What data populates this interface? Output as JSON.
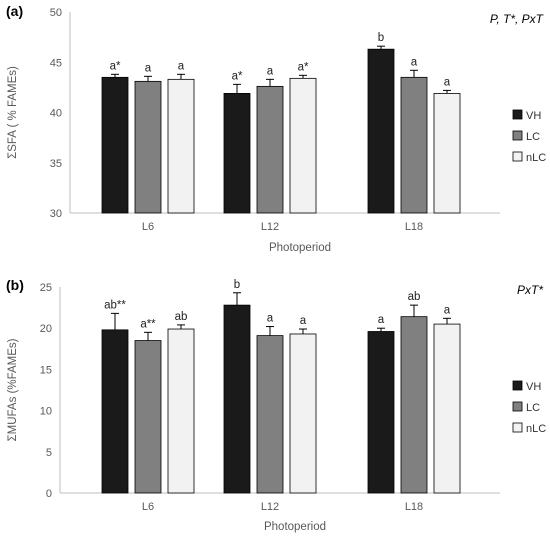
{
  "chart_data": [
    {
      "type": "bar",
      "panel_label": "(a)",
      "effects": "P, T*, PxT",
      "categories": [
        "L6",
        "L12",
        "L18"
      ],
      "xlabel": "Photoperiod",
      "ylabel": "ΣSFA ( % FAMEs)",
      "ylim": [
        30,
        50
      ],
      "yticks": [
        30,
        35,
        40,
        45,
        50
      ],
      "series": [
        {
          "name": "VH",
          "color": "#1a1a1a",
          "values": [
            43.5,
            41.9,
            46.3
          ],
          "errors": [
            0.3,
            0.9,
            0.3
          ],
          "labels": [
            "a*",
            "a*",
            "b"
          ]
        },
        {
          "name": "LC",
          "color": "#808080",
          "values": [
            43.1,
            42.6,
            43.5
          ],
          "errors": [
            0.5,
            0.7,
            0.7
          ],
          "labels": [
            "a",
            "a",
            "a"
          ]
        },
        {
          "name": "nLC",
          "color": "#f2f2f2",
          "values": [
            43.3,
            43.4,
            41.9
          ],
          "errors": [
            0.5,
            0.3,
            0.3
          ],
          "labels": [
            "a",
            "a*",
            "a"
          ]
        }
      ],
      "legend_position": "right"
    },
    {
      "type": "bar",
      "panel_label": "(b)",
      "effects": "PxT*",
      "categories": [
        "L6",
        "L12",
        "L18"
      ],
      "xlabel": "Photoperiod",
      "ylabel": "ΣMUFAs (%FAMEs)",
      "ylim": [
        0,
        25
      ],
      "yticks": [
        0,
        5,
        10,
        15,
        20,
        25
      ],
      "series": [
        {
          "name": "VH",
          "color": "#1a1a1a",
          "values": [
            19.8,
            22.8,
            19.6
          ],
          "errors": [
            2.0,
            1.5,
            0.4
          ],
          "labels": [
            "ab**",
            "b",
            "a"
          ]
        },
        {
          "name": "LC",
          "color": "#808080",
          "values": [
            18.5,
            19.1,
            21.4
          ],
          "errors": [
            1.0,
            1.1,
            1.4
          ],
          "labels": [
            "a**",
            "a",
            "ab"
          ]
        },
        {
          "name": "nLC",
          "color": "#f2f2f2",
          "values": [
            19.9,
            19.3,
            20.5
          ],
          "errors": [
            0.5,
            0.6,
            0.7
          ],
          "labels": [
            "ab",
            "a",
            "a"
          ]
        }
      ],
      "legend_position": "right"
    }
  ]
}
